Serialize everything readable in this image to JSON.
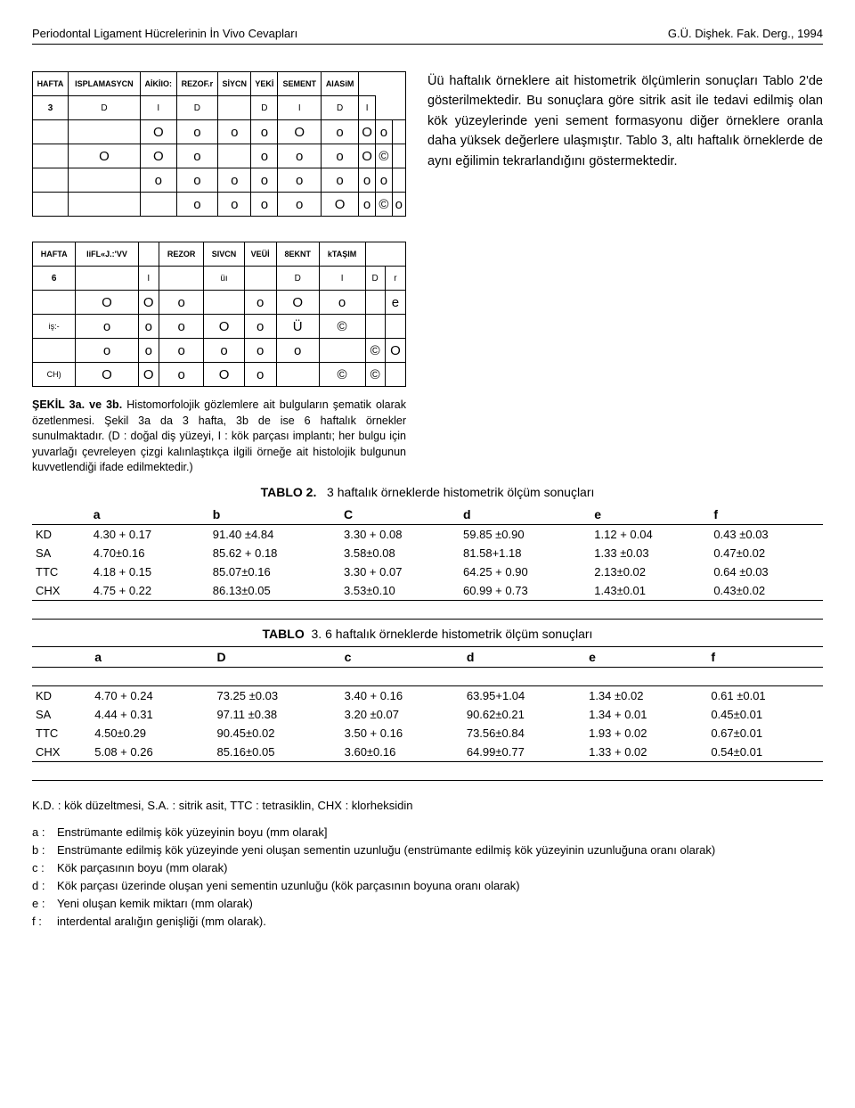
{
  "header": {
    "left": "Periodontal Ligament Hücrelerinin İn Vivo Cevapları",
    "right": "G.Ü. Dişhek. Fak. Derg., 1994"
  },
  "schematic3a": {
    "head": [
      "HAFTA",
      "ISPLAMASYCN",
      "AİKİIO:",
      "REZOF.r",
      "SİYCN",
      "YEKİ",
      "SEMENT",
      "AIASiM"
    ],
    "topLeft": "3",
    "letterRow": [
      "D",
      "I",
      "D",
      "",
      "D",
      "I",
      "D",
      "I"
    ],
    "rows": [
      [
        "",
        "",
        "O",
        "o",
        "o",
        "o",
        "O",
        "o",
        "O",
        "o"
      ],
      [
        "",
        "O",
        "O",
        "o",
        "",
        "o",
        "o",
        "o",
        "O",
        "©"
      ],
      [
        "",
        "",
        "o",
        "o",
        "o",
        "o",
        "o",
        "o",
        "o",
        "o"
      ],
      [
        "",
        "",
        "",
        "o",
        "o",
        "o",
        "o",
        "O",
        "o",
        "©",
        "o"
      ]
    ]
  },
  "paragraph": "Üü haftalık örneklere ait histometrik ölçümlerin sonuçları Tablo 2'de gösterilmektedir. Bu sonuçlara göre sitrik asit ile tedavi edilmiş olan kök yüzeylerinde yeni sement formasyonu diğer örneklere oranla daha yüksek değerlere ulaşmıştır. Tablo 3, altı haftalık örneklerde de aynı eğilimin tekrarlandığını göstermektedir.",
  "schematic3b": {
    "head": [
      "HAFTA",
      "liFL«J.:'VV",
      "",
      "REZOR",
      "SIVCN",
      "VEÜİ",
      "8EKNT",
      "kTAŞIM"
    ],
    "topLeft": "6",
    "letterRow": [
      "",
      "I",
      "",
      "üı",
      "",
      "D",
      "I",
      "D",
      "r"
    ],
    "rowLabels": [
      "",
      "iş:-",
      "",
      "CH)"
    ],
    "rows": [
      [
        "",
        "O",
        "O",
        "o",
        "",
        "o",
        "O",
        "o",
        "",
        "e"
      ],
      [
        "",
        "o",
        "o",
        "o",
        "O",
        "o",
        "Ü",
        "©",
        "",
        ""
      ],
      [
        "",
        "o",
        "o",
        "o",
        "o",
        "o",
        "o",
        "",
        "©",
        "O"
      ],
      [
        "",
        "O",
        "O",
        "o",
        "O",
        "o",
        "",
        "©",
        "©",
        ""
      ]
    ]
  },
  "caption": {
    "lead": "ŞEKİL 3a. ve 3b.",
    "text": "Histomorfolojik gözlemlere ait bulguların şematik olarak özetlenmesi. Şekil 3a da 3 hafta, 3b de ise 6 haftalık örnekler sunulmaktadır. (D : doğal diş yüzeyi, I : kök parçası implantı; her bulgu için yuvarlağı çevreleyen çizgi kalınlaştıkça ilgili örneğe ait histolojik bulgunun kuvvetlendiği ifade edilmektedir.)"
  },
  "tablo2": {
    "title_label": "TABLO 2.",
    "title_text": "3 haftalık örneklerde histometrik ölçüm sonuçları",
    "cols": [
      "",
      "a",
      "b",
      "C",
      "d",
      "e",
      "f"
    ],
    "rows": [
      [
        "KD",
        "4.30 + 0.17",
        "91.40 ±4.84",
        "3.30 + 0.08",
        "59.85 ±0.90",
        "1.12 + 0.04",
        "0.43 ±0.03"
      ],
      [
        "SA",
        "4.70±0.16",
        "85.62 + 0.18",
        "3.58±0.08",
        "81.58+1.18",
        "1.33 ±0.03",
        "0.47±0.02"
      ],
      [
        "TTC",
        "4.18 + 0.15",
        "85.07±0.16",
        "3.30 + 0.07",
        "64.25 + 0.90",
        "2.13±0.02",
        "0.64 ±0.03"
      ],
      [
        "CHX",
        "4.75 + 0.22",
        "86.13±0.05",
        "3.53±0.10",
        "60.99 + 0.73",
        "1.43±0.01",
        "0.43±0.02"
      ]
    ]
  },
  "tablo3": {
    "title_label": "TABLO",
    "title_text": "3.   6 haftalık   örneklerde   histometrik ölçüm   sonuçları",
    "cols": [
      "",
      "a",
      "D",
      "c",
      "d",
      "e",
      "f"
    ],
    "rows": [
      [
        "KD",
        "4.70 + 0.24",
        "73.25 ±0.03",
        "3.40 + 0.16",
        "63.95+1.04",
        "1.34 ±0.02",
        "0.61 ±0.01"
      ],
      [
        "SA",
        "4.44 + 0.31",
        "97.11 ±0.38",
        "3.20 ±0.07",
        "90.62±0.21",
        "1.34 + 0.01",
        "0.45±0.01"
      ],
      [
        "TTC",
        "4.50±0.29",
        "90.45±0.02",
        "3.50 + 0.16",
        "73.56±0.84",
        "1.93 + 0.02",
        "0.67±0.01"
      ],
      [
        "CHX",
        "5.08 + 0.26",
        "85.16±0.05",
        "3.60±0.16",
        "64.99±0.77",
        "1.33 + 0.02",
        "0.54±0.01"
      ]
    ]
  },
  "legend": {
    "line1": "K.D. :  kök düzeltmesi,   S.A. : sitrik asit,   TTC : tetrasiklin,   CHX : klorheksidin",
    "items": [
      {
        "k": "a :",
        "v": "Enstrümante   edilmiş      kök   yüzeyinin boyu  (mm olarak]"
      },
      {
        "k": "b :",
        "v": "Enstrümante   edilmiş kök yüzeyinde  yeni  oluşan sementin uzunluğu  (enstrümante edilmiş     kök yüzeyinin uzunluğuna oranı olarak)"
      },
      {
        "k": "c :",
        "v": "Kök parçasının boyu (mm olarak)"
      },
      {
        "k": "d :",
        "v": "Kök parçası   üzerinde oluşan  yeni  sementin uzunluğu (kök parçasının boyuna oranı  olarak)"
      },
      {
        "k": "e :",
        "v": "Yeni oluşan kemik miktarı  (mm olarak)"
      },
      {
        "k": "f :",
        "v": "interdental aralığın genişliği (mm olarak)."
      }
    ]
  }
}
